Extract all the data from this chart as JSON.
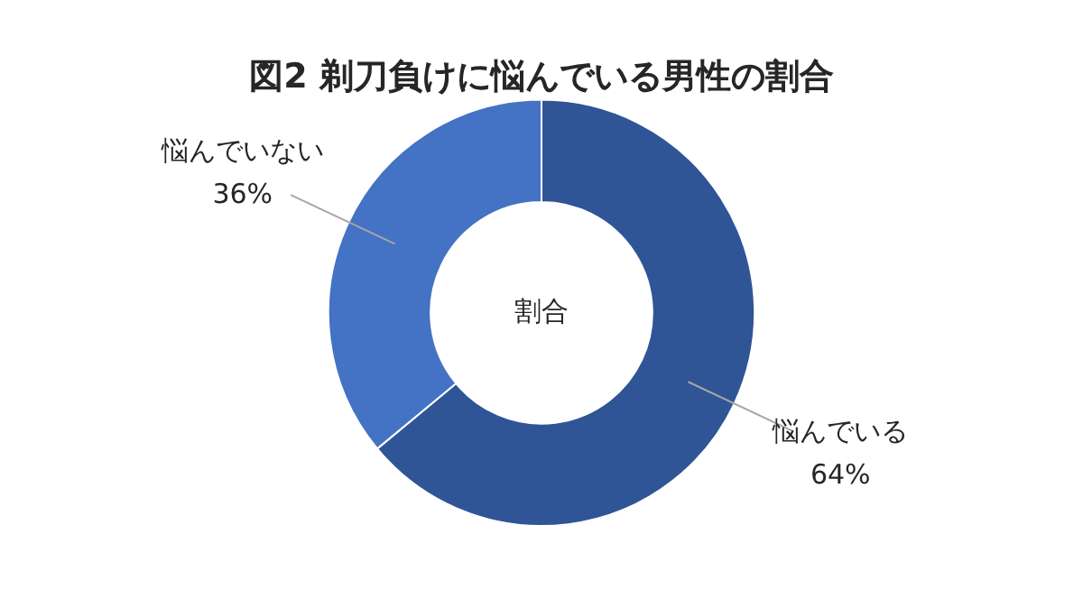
{
  "chart_data": {
    "type": "donut",
    "title": "図2 剃刀負けに悩んでいる男性の割合",
    "categories": [
      "悩んでいる",
      "悩んでいない"
    ],
    "values": [
      64,
      36
    ],
    "value_labels": [
      "64%",
      "36%"
    ],
    "colors": [
      "#2f5597",
      "#4472c4"
    ],
    "annotations": [
      "割合"
    ],
    "legend": false
  }
}
